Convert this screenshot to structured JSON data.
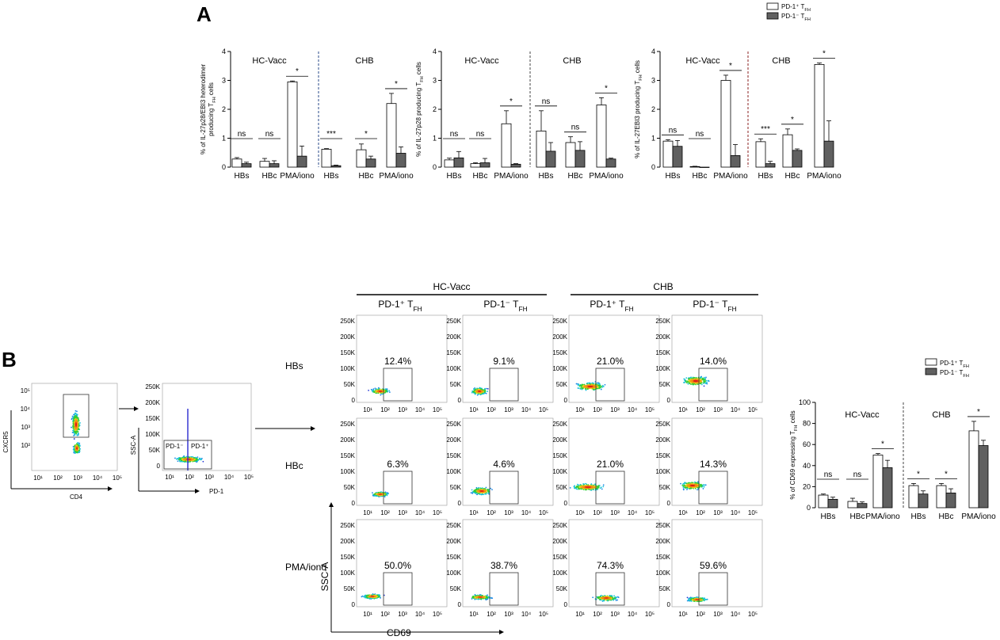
{
  "panel_labels": {
    "a": "A",
    "b": "B"
  },
  "colors": {
    "series1": "#ffffff",
    "series2": "#606060",
    "dash_blue": "#2a4a8a",
    "dash_red": "#8b2020",
    "dash_gray": "#444444",
    "density_low": "#1f3fd6",
    "density_high": "#d11a1a"
  },
  "legend_top": [
    "PD-1⁺ T_FH",
    "PD-1⁻ T_FH"
  ],
  "chart_data": [
    {
      "id": "a1",
      "type": "bar",
      "ylabel_line1": "% of IL-27p28/EBI3 heterodimer",
      "ylabel_line2": "producing T_FH cells",
      "ylim": [
        0,
        4
      ],
      "yticks": [
        "0",
        "1",
        "2",
        "3",
        "4"
      ],
      "groups": [
        "HC-Vacc",
        "CHB"
      ],
      "categories": [
        "HBs",
        "HBc",
        "PMA/iono",
        "HBs",
        "HBc",
        "PMA/iono"
      ],
      "series": [
        {
          "name": "PD-1⁺ T_FH",
          "values": [
            0.28,
            0.2,
            2.95,
            0.62,
            0.6,
            2.2
          ],
          "errors": [
            0.05,
            0.1,
            0.03,
            0.02,
            0.2,
            0.35
          ]
        },
        {
          "name": "PD-1⁻ T_FH",
          "values": [
            0.12,
            0.12,
            0.38,
            0.05,
            0.28,
            0.48
          ],
          "errors": [
            0.05,
            0.1,
            0.35,
            0.02,
            0.1,
            0.22
          ]
        }
      ],
      "significance": [
        "ns",
        "ns",
        "*",
        "***",
        "*",
        "*"
      ]
    },
    {
      "id": "a2",
      "type": "bar",
      "ylabel_line1": "% of IL-27p28 producing T_FH cells",
      "ylabel_line2": "",
      "ylim": [
        0,
        4
      ],
      "yticks": [
        "0",
        "1",
        "2",
        "3",
        "4"
      ],
      "groups": [
        "HC-Vacc",
        "CHB"
      ],
      "categories": [
        "HBs",
        "HBc",
        "PMA/iono",
        "HBs",
        "HBc",
        "PMA/iono"
      ],
      "series": [
        {
          "name": "PD-1⁺ T_FH",
          "values": [
            0.25,
            0.12,
            1.5,
            1.25,
            0.85,
            2.15
          ],
          "errors": [
            0.06,
            0.03,
            0.45,
            0.7,
            0.2,
            0.25
          ]
        },
        {
          "name": "PD-1⁻ T_FH",
          "values": [
            0.32,
            0.15,
            0.1,
            0.55,
            0.58,
            0.28
          ],
          "errors": [
            0.22,
            0.15,
            0.02,
            0.3,
            0.3,
            0.03
          ]
        }
      ],
      "significance": [
        "ns",
        "ns",
        "*",
        "ns",
        "ns",
        "*"
      ]
    },
    {
      "id": "a3",
      "type": "bar",
      "ylabel_line1": "% of IL-27EBI3 producing T_FH cells",
      "ylabel_line2": "",
      "ylim": [
        0,
        4
      ],
      "yticks": [
        "0",
        "1",
        "2",
        "3",
        "4"
      ],
      "groups": [
        "HC-Vacc",
        "CHB"
      ],
      "categories": [
        "HBs",
        "HBc",
        "PMA/iono",
        "HBs",
        "HBc",
        "PMA/iono"
      ],
      "series": [
        {
          "name": "PD-1⁺ T_FH",
          "values": [
            0.9,
            0.02,
            3.0,
            0.88,
            1.12,
            3.55
          ],
          "errors": [
            0.05,
            0.01,
            0.18,
            0.1,
            0.2,
            0.05
          ]
        },
        {
          "name": "PD-1⁻ T_FH",
          "values": [
            0.72,
            0.0,
            0.4,
            0.12,
            0.58,
            0.9
          ],
          "errors": [
            0.2,
            0.0,
            0.38,
            0.08,
            0.05,
            0.7
          ]
        }
      ],
      "significance": [
        "ns",
        "ns",
        "*",
        "***",
        "*",
        "*"
      ]
    },
    {
      "id": "b",
      "type": "bar",
      "ylabel_line1": "% of CD69 expressing T_FH cells",
      "ylabel_line2": "",
      "ylim": [
        0,
        100
      ],
      "yticks": [
        "0",
        "20",
        "40",
        "60",
        "80",
        "100"
      ],
      "groups": [
        "HC-Vacc",
        "CHB"
      ],
      "categories": [
        "HBs",
        "HBc",
        "PMA/iono",
        "HBs",
        "HBc",
        "PMA/iono"
      ],
      "series": [
        {
          "name": "PD-1⁺ T_FH",
          "values": [
            12,
            6,
            50,
            21,
            21,
            73
          ],
          "errors": [
            1,
            3,
            1.5,
            2,
            2,
            9
          ]
        },
        {
          "name": "PD-1⁻ T_FH",
          "values": [
            8,
            4,
            38,
            13,
            14,
            59
          ],
          "errors": [
            2,
            1.5,
            7,
            3,
            4,
            5
          ]
        }
      ],
      "significance": [
        "ns",
        "ns",
        "*",
        "*",
        "*",
        "*"
      ],
      "legend": [
        "PD-1⁺ T_FH",
        "PD-1⁻ T_FH"
      ]
    }
  ],
  "gating": {
    "plot1": {
      "ylabel": "CXCR5",
      "xlabel": "CD4",
      "ticks": [
        "10¹",
        "10²",
        "10³",
        "10⁴",
        "10⁵"
      ],
      "yticks": [
        "10⁵",
        "10⁴",
        "10³",
        "10²"
      ]
    },
    "plot2": {
      "ylabel": "SSC-A",
      "xlabel": "PD-1",
      "gate_left": "PD-1⁻",
      "gate_right": "PD-1⁺",
      "ticks": [
        "10¹",
        "10²",
        "10³",
        "10⁴",
        "10⁵"
      ],
      "yticks": [
        "250K",
        "200K",
        "150K",
        "100K",
        "50K",
        "0"
      ]
    }
  },
  "flow_grid": {
    "group_headers": [
      "HC-Vacc",
      "CHB"
    ],
    "column_headers": [
      "PD-1⁺ T_FH",
      "PD-1⁻ T_FH",
      "PD-1⁺ T_FH",
      "PD-1⁻ T_FH"
    ],
    "row_labels": [
      "HBs",
      "HBc",
      "PMA/iono"
    ],
    "percentages": [
      [
        "12.4%",
        "9.1%",
        "21.0%",
        "14.0%"
      ],
      [
        "6.3%",
        "4.6%",
        "21.0%",
        "14.3%"
      ],
      [
        "50.0%",
        "38.7%",
        "74.3%",
        "59.6%"
      ]
    ],
    "yticks": [
      "250K",
      "200K",
      "150K",
      "100K",
      "50K",
      "0"
    ],
    "xticks": [
      "10¹",
      "10²",
      "10³",
      "10⁴",
      "10⁵"
    ],
    "axis_y": "SSC-A",
    "axis_x": "CD69"
  }
}
